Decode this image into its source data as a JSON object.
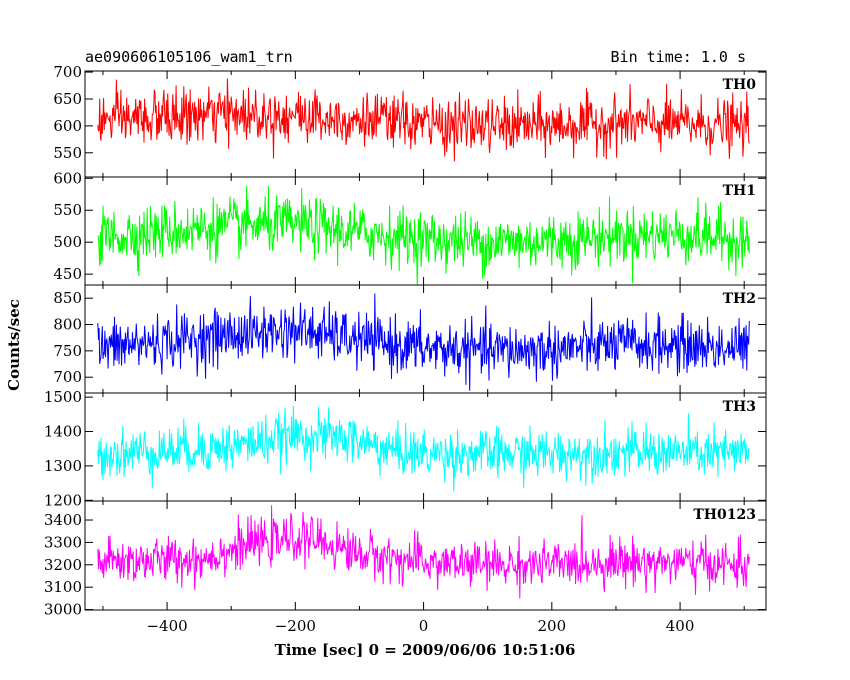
{
  "header": {
    "left_title": "ae090606105106_wam1_trn",
    "right_title": "Bin time: 1.0 s"
  },
  "chart_data": {
    "type": "line",
    "title": "ae090606105106_wam1_trn",
    "subtitle": "Bin time: 1.0 s",
    "xlabel": "Time [sec] 0 = 2009/06/06 10:51:06",
    "ylabel": "Counts/sec",
    "xlim": [
      -528,
      534
    ],
    "x_ticks": [
      -400,
      -200,
      0,
      200,
      400
    ],
    "x_tick_labels": [
      "−400",
      "−200",
      "0",
      "200",
      "400"
    ],
    "x_range_data": [
      -508,
      508
    ],
    "bin_time": 1.0,
    "grid": false,
    "panels": [
      {
        "name": "TH0",
        "color": "#ff0000",
        "ylim": [
          505,
          702
        ],
        "y_ticks": [
          550,
          600,
          650,
          700
        ],
        "y_tick_labels": [
          "550",
          "600",
          "650",
          "700"
        ],
        "baseline": [
          [
            -508,
            610
          ],
          [
            -300,
            622
          ],
          [
            -200,
            620
          ],
          [
            -100,
            612
          ],
          [
            0,
            604
          ],
          [
            100,
            600
          ],
          [
            200,
            600
          ],
          [
            300,
            605
          ],
          [
            400,
            604
          ],
          [
            508,
            598
          ]
        ],
        "noise_sd": 25,
        "hump": null
      },
      {
        "name": "TH1",
        "color": "#00ff00",
        "ylim": [
          433,
          602
        ],
        "y_ticks": [
          450,
          500,
          550,
          600
        ],
        "y_tick_labels": [
          "450",
          "500",
          "550",
          "600"
        ],
        "baseline": [
          [
            -508,
            508
          ],
          [
            -300,
            525
          ],
          [
            -200,
            528
          ],
          [
            -100,
            515
          ],
          [
            0,
            505
          ],
          [
            100,
            500
          ],
          [
            200,
            502
          ],
          [
            300,
            510
          ],
          [
            400,
            512
          ],
          [
            508,
            505
          ]
        ],
        "noise_sd": 22,
        "hump": null
      },
      {
        "name": "TH2",
        "color": "#0000ff",
        "ylim": [
          670,
          875
        ],
        "y_ticks": [
          700,
          750,
          800,
          850
        ],
        "y_tick_labels": [
          "700",
          "750",
          "800",
          "850"
        ],
        "baseline": [
          [
            -508,
            755
          ],
          [
            -300,
            780
          ],
          [
            -200,
            790
          ],
          [
            -100,
            770
          ],
          [
            0,
            755
          ],
          [
            100,
            750
          ],
          [
            200,
            752
          ],
          [
            300,
            762
          ],
          [
            400,
            760
          ],
          [
            508,
            755
          ]
        ],
        "noise_sd": 26,
        "hump": null
      },
      {
        "name": "TH3",
        "color": "#00ffff",
        "ylim": [
          1198,
          1512
        ],
        "y_ticks": [
          1200,
          1300,
          1400,
          1500
        ],
        "y_tick_labels": [
          "1200",
          "1300",
          "1400",
          "1500"
        ],
        "baseline": [
          [
            -508,
            1335
          ],
          [
            -300,
            1355
          ],
          [
            -200,
            1390
          ],
          [
            -120,
            1380
          ],
          [
            -50,
            1345
          ],
          [
            0,
            1335
          ],
          [
            200,
            1335
          ],
          [
            300,
            1340
          ],
          [
            400,
            1338
          ],
          [
            508,
            1335
          ]
        ],
        "noise_sd": 35,
        "hump": null
      },
      {
        "name": "TH0123",
        "color": "#ff00ff",
        "ylim": [
          2998,
          3485
        ],
        "y_ticks": [
          3000,
          3100,
          3200,
          3300,
          3400
        ],
        "y_tick_labels": [
          "3000",
          "3100",
          "3200",
          "3300",
          "3400"
        ],
        "baseline": [
          [
            -508,
            3215
          ],
          [
            -350,
            3225
          ],
          [
            -260,
            3300
          ],
          [
            -180,
            3320
          ],
          [
            -100,
            3250
          ],
          [
            0,
            3210
          ],
          [
            100,
            3200
          ],
          [
            200,
            3200
          ],
          [
            300,
            3215
          ],
          [
            400,
            3210
          ],
          [
            508,
            3195
          ]
        ],
        "noise_sd": 50,
        "hump": null
      }
    ]
  }
}
